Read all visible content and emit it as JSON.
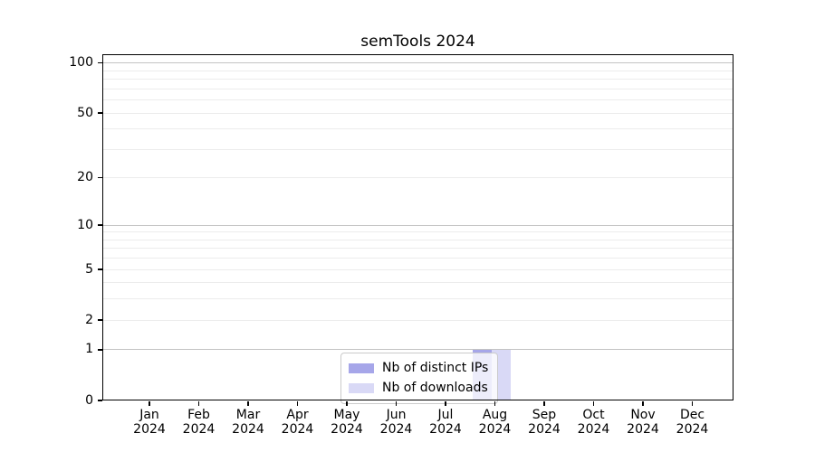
{
  "chart_data": {
    "type": "bar",
    "title": "semTools 2024",
    "categories": [
      {
        "month": "Jan",
        "year": "2024"
      },
      {
        "month": "Feb",
        "year": "2024"
      },
      {
        "month": "Mar",
        "year": "2024"
      },
      {
        "month": "Apr",
        "year": "2024"
      },
      {
        "month": "May",
        "year": "2024"
      },
      {
        "month": "Jun",
        "year": "2024"
      },
      {
        "month": "Jul",
        "year": "2024"
      },
      {
        "month": "Aug",
        "year": "2024"
      },
      {
        "month": "Sep",
        "year": "2024"
      },
      {
        "month": "Oct",
        "year": "2024"
      },
      {
        "month": "Nov",
        "year": "2024"
      },
      {
        "month": "Dec",
        "year": "2024"
      }
    ],
    "series": [
      {
        "name": "Nb of distinct IPs",
        "color": "#a6a6e9",
        "values": [
          0,
          0,
          0,
          0,
          0,
          0,
          0,
          1,
          0,
          0,
          0,
          0
        ]
      },
      {
        "name": "Nb of downloads",
        "color": "#d9d9f6",
        "values": [
          0,
          0,
          0,
          0,
          0,
          0,
          0,
          1,
          0,
          0,
          0,
          0
        ]
      }
    ],
    "yscale": "log1p",
    "ylim": [
      0,
      113
    ],
    "yticks": [
      {
        "value": 0,
        "label": "0"
      },
      {
        "value": 1,
        "label": "1"
      },
      {
        "value": 2,
        "label": "2"
      },
      {
        "value": 5,
        "label": "5"
      },
      {
        "value": 10,
        "label": "10"
      },
      {
        "value": 20,
        "label": "20"
      },
      {
        "value": 50,
        "label": "50"
      },
      {
        "value": 100,
        "label": "100"
      }
    ],
    "major_gridlines": [
      1,
      10,
      100
    ],
    "minor_gridlines": [
      2,
      3,
      4,
      5,
      6,
      7,
      8,
      9,
      20,
      30,
      40,
      50,
      60,
      70,
      80,
      90
    ],
    "grid": true,
    "legend_position": "bottom-center",
    "colors": {
      "major_grid": "#c3c3c3",
      "minor_grid": "#ececec",
      "spine": "#000000",
      "background": "#ffffff"
    }
  }
}
